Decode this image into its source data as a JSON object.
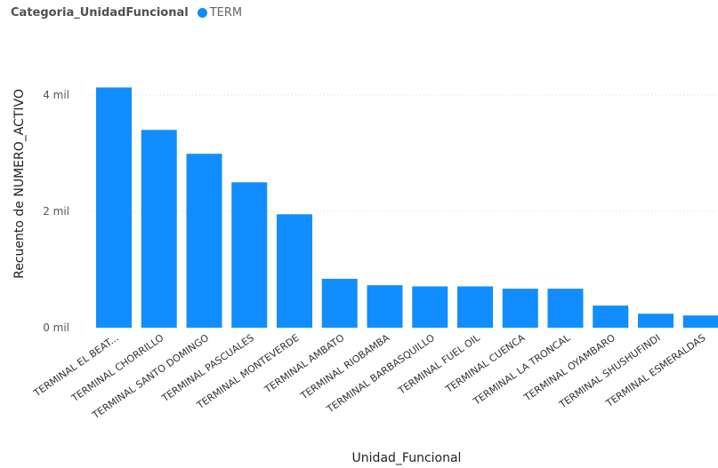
{
  "legend": {
    "title": "Categoria_UnidadFuncional",
    "items": [
      {
        "label": "TERM",
        "color": "#118DFF"
      }
    ]
  },
  "chart_data": {
    "type": "bar",
    "title": "",
    "xlabel": "Unidad_Funcional",
    "ylabel": "Recuento de NUMERO_ACTIVO",
    "ylim": [
      0,
      4000
    ],
    "yticks": [
      {
        "value": 0,
        "label": "0 mil"
      },
      {
        "value": 2000,
        "label": "2 mil"
      },
      {
        "value": 4000,
        "label": "4 mil"
      }
    ],
    "grid": true,
    "legend_position": "top-left",
    "bar_color": "#118DFF",
    "categories": [
      "TERMINAL EL BEAT...",
      "TERMINAL CHORRILLO",
      "TERMINAL SANTO DOMINGO",
      "TERMINAL PASCUALES",
      "TERMINAL MONTEVERDE",
      "TERMINAL AMBATO",
      "TERMINAL RIOBAMBA",
      "TERMINAL BARBASQUILLO",
      "TERMINAL FUEL OIL",
      "TERMINAL CUENCA",
      "TERMINAL LA TRONCAL",
      "TERMINAL OYAMBARO",
      "TERMINAL SHUSHUFINDI",
      "TERMINAL ESMERALDAS"
    ],
    "series": [
      {
        "name": "TERM",
        "values": [
          4130,
          3400,
          2990,
          2500,
          1950,
          840,
          730,
          710,
          710,
          670,
          670,
          380,
          240,
          210
        ]
      }
    ]
  }
}
